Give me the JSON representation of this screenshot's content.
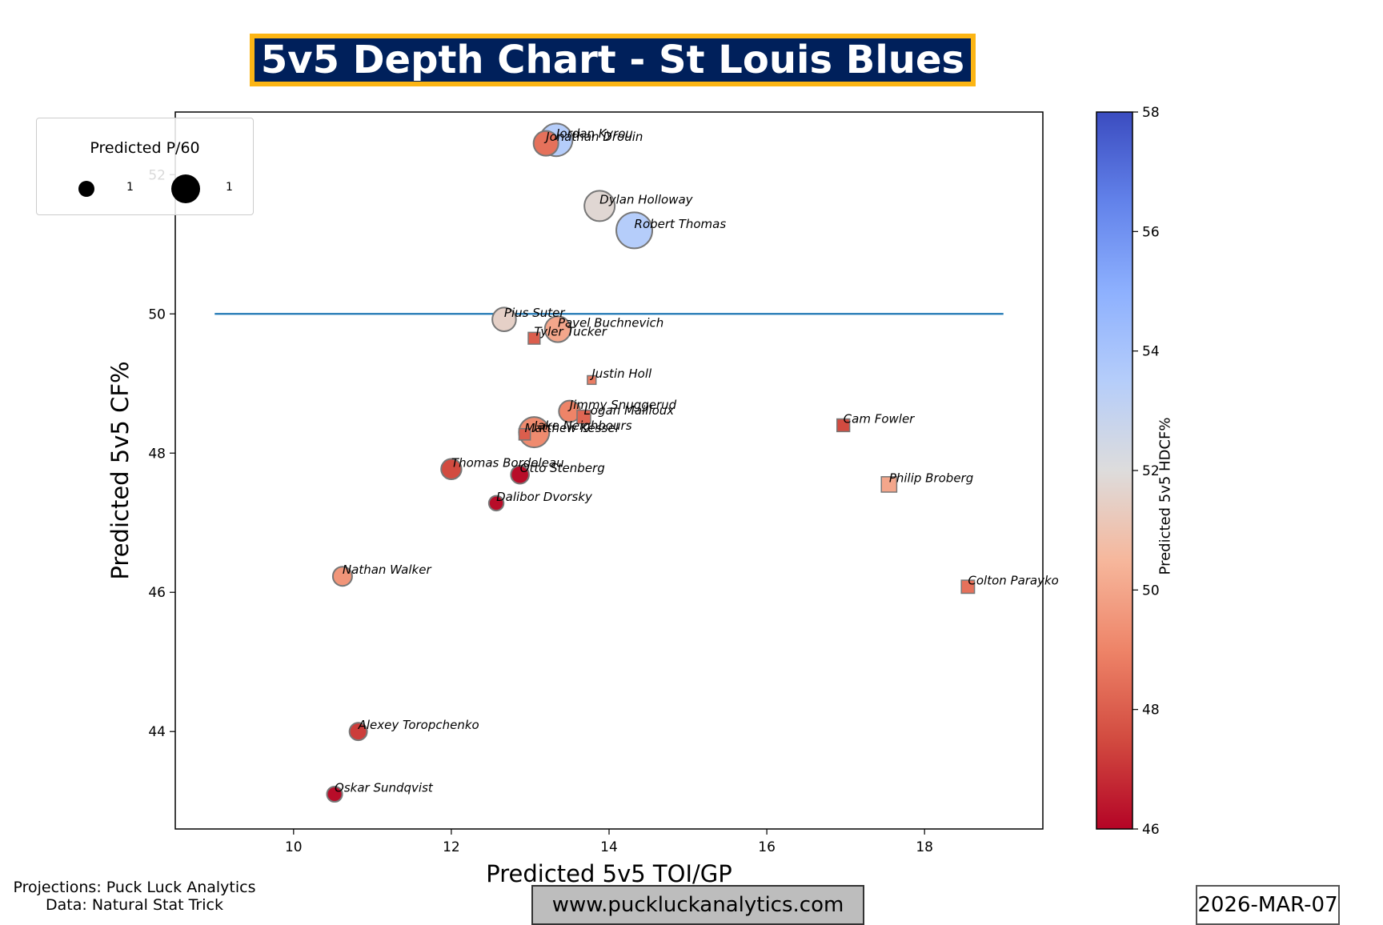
{
  "header": {
    "title": "5v5 Depth Chart - St Louis Blues"
  },
  "footer": {
    "credit_line1": "Projections: Puck Luck Analytics",
    "credit_line2": "Data: Natural Stat Trick",
    "url": "www.puckluckanalytics.com",
    "date": "2026-MAR-07"
  },
  "colors": {
    "title_bg": "#00205B",
    "title_border": "#FCB514",
    "reference_line": "#1f77b4"
  },
  "chart_data": {
    "type": "scatter",
    "xlabel": "Predicted 5v5 TOI/GP",
    "ylabel": "Predicted 5v5 CF%",
    "xlim": [
      8.5,
      19.5
    ],
    "ylim": [
      42.6,
      52.9
    ],
    "xticks": [
      10,
      12,
      14,
      16,
      18
    ],
    "yticks": [
      44,
      46,
      48,
      50,
      52
    ],
    "reference_line": {
      "y": 50,
      "x_from": 9,
      "x_to": 19
    },
    "colorbar": {
      "label": "Predicted 5v5 HDCF%",
      "range": [
        46,
        58
      ],
      "ticks": [
        46,
        48,
        50,
        52,
        54,
        56,
        58
      ],
      "colormap": "coolwarm"
    },
    "size_legend": {
      "title": "Predicted P/60",
      "labels": [
        "1",
        "1"
      ]
    },
    "marker_key": {
      "circle": "forward",
      "square": "defense"
    },
    "points": [
      {
        "name": "Jordan Kyrou",
        "x": 13.33,
        "y": 52.5,
        "hdcf": 53.5,
        "p60": 2.2,
        "shape": "circle"
      },
      {
        "name": "Jonathan Drouin",
        "x": 13.2,
        "y": 52.45,
        "hdcf": 48.5,
        "p60": 1.5,
        "shape": "circle"
      },
      {
        "name": "Dylan Holloway",
        "x": 13.88,
        "y": 51.55,
        "hdcf": 51.8,
        "p60": 2.0,
        "shape": "circle"
      },
      {
        "name": "Robert Thomas",
        "x": 14.32,
        "y": 51.2,
        "hdcf": 53.5,
        "p60": 2.5,
        "shape": "circle"
      },
      {
        "name": "Pius Suter",
        "x": 12.67,
        "y": 49.92,
        "hdcf": 51.5,
        "p60": 1.4,
        "shape": "circle"
      },
      {
        "name": "Pavel Buchnevich",
        "x": 13.35,
        "y": 49.78,
        "hdcf": 50.0,
        "p60": 1.6,
        "shape": "circle"
      },
      {
        "name": "Tyler Tucker",
        "x": 13.05,
        "y": 49.65,
        "hdcf": 48.0,
        "p60": 0.6,
        "shape": "square"
      },
      {
        "name": "Justin Holl",
        "x": 13.78,
        "y": 49.05,
        "hdcf": 48.8,
        "p60": 0.25,
        "shape": "square"
      },
      {
        "name": "Jimmy Snuggerud",
        "x": 13.5,
        "y": 48.6,
        "hdcf": 49.0,
        "p60": 1.2,
        "shape": "circle"
      },
      {
        "name": "Logan Mailloux",
        "x": 13.68,
        "y": 48.52,
        "hdcf": 48.2,
        "p60": 0.8,
        "shape": "square"
      },
      {
        "name": "Jake Neighbours",
        "x": 13.05,
        "y": 48.3,
        "hdcf": 49.2,
        "p60": 2.0,
        "shape": "circle"
      },
      {
        "name": "Matthew Kessel",
        "x": 12.93,
        "y": 48.27,
        "hdcf": 48.0,
        "p60": 0.55,
        "shape": "square"
      },
      {
        "name": "Cam Fowler",
        "x": 16.97,
        "y": 48.4,
        "hdcf": 47.5,
        "p60": 0.7,
        "shape": "square"
      },
      {
        "name": "Thomas Bordeleau",
        "x": 12.0,
        "y": 47.77,
        "hdcf": 47.5,
        "p60": 1.1,
        "shape": "circle"
      },
      {
        "name": "Otto Stenberg",
        "x": 12.87,
        "y": 47.69,
        "hdcf": 46.2,
        "p60": 0.9,
        "shape": "circle"
      },
      {
        "name": "Philip Broberg",
        "x": 17.55,
        "y": 47.55,
        "hdcf": 50.0,
        "p60": 1.0,
        "shape": "square"
      },
      {
        "name": "Dalibor Dvorsky",
        "x": 12.57,
        "y": 47.28,
        "hdcf": 46.2,
        "p60": 0.6,
        "shape": "circle"
      },
      {
        "name": "Nathan Walker",
        "x": 10.62,
        "y": 46.23,
        "hdcf": 49.5,
        "p60": 1.0,
        "shape": "circle"
      },
      {
        "name": "Colton Parayko",
        "x": 18.55,
        "y": 46.08,
        "hdcf": 48.5,
        "p60": 0.75,
        "shape": "square"
      },
      {
        "name": "Alexey Toropchenko",
        "x": 10.82,
        "y": 44.0,
        "hdcf": 47.2,
        "p60": 0.85,
        "shape": "circle"
      },
      {
        "name": "Oskar Sundqvist",
        "x": 10.52,
        "y": 43.1,
        "hdcf": 46.2,
        "p60": 0.65,
        "shape": "circle"
      }
    ]
  }
}
